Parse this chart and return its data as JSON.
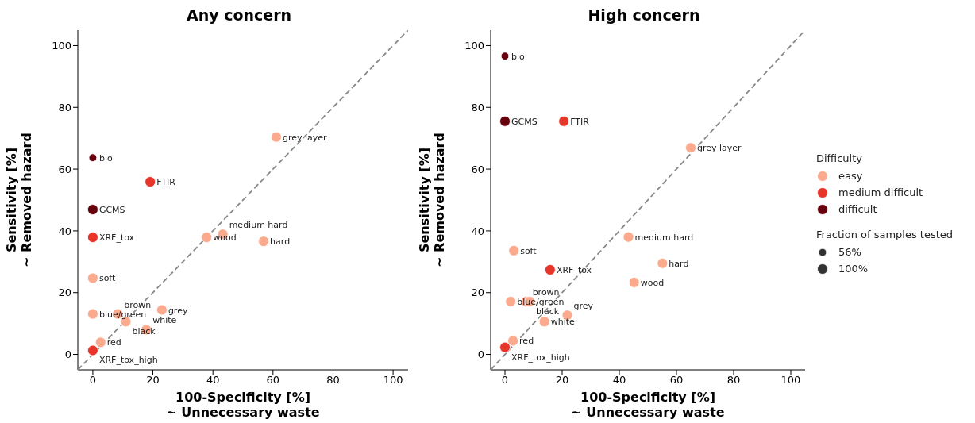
{
  "chart_data": [
    {
      "type": "bubble",
      "title": "Any concern",
      "xlabel": "100-Specificity [%]\n~ Unnecessary waste",
      "ylabel": "Sensitivity [%]\n~ Removed hazard",
      "xlim": [
        -5,
        105
      ],
      "ylim": [
        -5,
        105
      ],
      "xticks": [
        0,
        20,
        40,
        60,
        80,
        100
      ],
      "yticks": [
        0,
        20,
        40,
        60,
        80,
        100
      ],
      "grid": false,
      "marker": "circle",
      "series": [
        {
          "type": "line",
          "color": "#888888",
          "line_style": "dashed",
          "marker": "none",
          "x": [
            -5,
            105
          ],
          "values": [
            -5,
            105
          ]
        },
        {
          "color": "#fcaa8e",
          "x": [
            0,
            0,
            8.3,
            11,
            17.8,
            23,
            2.6,
            37.9,
            43.3,
            56.9,
            61.1
          ],
          "values": [
            24.7,
            13.1,
            13.1,
            10.6,
            8,
            14.4,
            3.9,
            37.9,
            38.9,
            36.6,
            70.4
          ],
          "sizes": [
            1,
            1,
            1,
            1,
            1,
            1,
            1,
            1,
            1,
            1,
            1
          ]
        },
        {
          "color": "#e8352a",
          "x": [
            19.1,
            0,
            0
          ],
          "values": [
            55.9,
            37.9,
            1.3
          ],
          "sizes": [
            1,
            1,
            1
          ]
        },
        {
          "color": "#67000d",
          "x": [
            0,
            0
          ],
          "values": [
            63.7,
            46.9
          ],
          "sizes": [
            0.56,
            1
          ]
        }
      ],
      "annotations": [
        {
          "text": "soft",
          "x": 0,
          "y": 24.7
        },
        {
          "text": "blue/green",
          "x": 0,
          "y": 13.1
        },
        {
          "text": "brown",
          "x": 8.3,
          "y": 13.1
        },
        {
          "text": "black",
          "x": 11,
          "y": 10.6
        },
        {
          "text": "white",
          "x": 17.8,
          "y": 8
        },
        {
          "text": "grey",
          "x": 23,
          "y": 14.4
        },
        {
          "text": "red",
          "x": 2.6,
          "y": 3.9
        },
        {
          "text": "wood",
          "x": 37.9,
          "y": 37.9
        },
        {
          "text": "medium hard",
          "x": 43.3,
          "y": 38.9
        },
        {
          "text": "hard",
          "x": 56.9,
          "y": 36.6
        },
        {
          "text": "grey layer",
          "x": 61.1,
          "y": 70.4
        },
        {
          "text": "FTIR",
          "x": 19.1,
          "y": 55.9
        },
        {
          "text": "XRF_tox",
          "x": 0,
          "y": 37.9
        },
        {
          "text": "XRF_tox_high",
          "x": 0,
          "y": 1.3
        },
        {
          "text": "bio",
          "x": 0,
          "y": 63.7
        },
        {
          "text": "GCMS",
          "x": 0,
          "y": 46.9
        }
      ]
    },
    {
      "type": "bubble",
      "title": "High concern",
      "xlabel": "100-Specificity [%]\n~ Unnecessary waste",
      "ylabel": "Sensitivity [%]\n~ Removed hazard",
      "xlim": [
        -5,
        105
      ],
      "ylim": [
        -5,
        105
      ],
      "xticks": [
        0,
        20,
        40,
        60,
        80,
        100
      ],
      "yticks": [
        0,
        20,
        40,
        60,
        80,
        100
      ],
      "grid": false,
      "legend": "right",
      "legend_title": "Difficulty",
      "marker": "circle",
      "size_legend": [
        {
          "value": 56,
          "label": "56%"
        },
        {
          "value": 100,
          "label": "100%"
        }
      ],
      "series": [
        {
          "type": "line",
          "color": "#888888",
          "line_style": "dashed",
          "marker": "none",
          "x": [
            -5,
            105
          ],
          "values": [
            -5,
            105
          ]
        },
        {
          "name": "easy",
          "color": "#fcaa8e",
          "x": [
            3.1,
            2,
            7.4,
            8.6,
            13.8,
            21.8,
            2.8,
            45.2,
            43.2,
            55.1,
            65
          ],
          "values": [
            33.6,
            17.1,
            17.1,
            17.1,
            10.6,
            12.7,
            4.4,
            23.3,
            38,
            29.5,
            66.9
          ],
          "sizes": [
            100,
            100,
            100,
            100,
            100,
            100,
            100,
            100,
            100,
            100,
            100
          ]
        },
        {
          "name": "medium difficult",
          "color": "#e8352a",
          "x": [
            20.6,
            15.8,
            0
          ],
          "values": [
            75.5,
            27.4,
            2.3
          ],
          "sizes": [
            100,
            100,
            100
          ]
        },
        {
          "name": "difficult",
          "color": "#67000d",
          "x": [
            0,
            0
          ],
          "values": [
            96.6,
            75.5
          ],
          "sizes": [
            56,
            100
          ]
        }
      ],
      "annotations": [
        "Fraction of samples tested",
        {
          "text": "soft",
          "x": 3.1,
          "y": 33.6
        },
        {
          "text": "blue/green",
          "x": 2,
          "y": 17.1
        },
        {
          "text": "brown",
          "x": 7.4,
          "y": 17.1
        },
        {
          "text": "black",
          "x": 8.6,
          "y": 17.1
        },
        {
          "text": "white",
          "x": 13.8,
          "y": 10.6
        },
        {
          "text": "grey",
          "x": 21.8,
          "y": 12.7
        },
        {
          "text": "red",
          "x": 2.8,
          "y": 4.4
        },
        {
          "text": "wood",
          "x": 45.2,
          "y": 23.3
        },
        {
          "text": "medium hard",
          "x": 43.2,
          "y": 38
        },
        {
          "text": "hard",
          "x": 55.1,
          "y": 29.5
        },
        {
          "text": "grey layer",
          "x": 65,
          "y": 66.9
        },
        {
          "text": "FTIR",
          "x": 20.6,
          "y": 75.5
        },
        {
          "text": "XRF_tox",
          "x": 15.8,
          "y": 27.4
        },
        {
          "text": "XRF_tox_high",
          "x": 0,
          "y": 2.3
        },
        {
          "text": "bio",
          "x": 0,
          "y": 96.6
        },
        {
          "text": "GCMS",
          "x": 0,
          "y": 75.5
        }
      ]
    }
  ]
}
